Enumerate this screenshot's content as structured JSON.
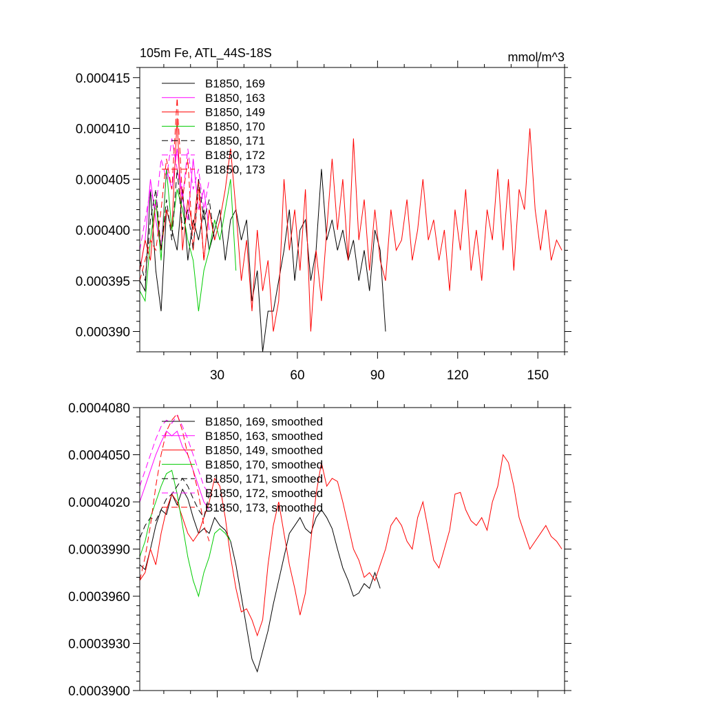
{
  "chart_data": [
    {
      "type": "line",
      "title": "105m Fe, ATL_44S-18S",
      "units": "mmol/m^3",
      "xlim": [
        1,
        160
      ],
      "ylim": [
        0.000388,
        0.000416
      ],
      "x_ticks": [
        30,
        60,
        90,
        120,
        150
      ],
      "x_tick_labels": [
        "30",
        "60",
        "90",
        "120",
        "150"
      ],
      "y_ticks": [
        0.00039,
        0.000395,
        0.0004,
        0.000405,
        0.00041,
        0.000415
      ],
      "y_tick_labels": [
        "0.000390",
        "0.000395",
        "0.000400",
        "0.000405",
        "0.000410",
        "0.000415"
      ],
      "legend": "top-left",
      "series": [
        {
          "name": "B1850, 169",
          "color": "#000000",
          "dash": "solid",
          "x": [
            1,
            3,
            5,
            7,
            9,
            11,
            13,
            15,
            17,
            19,
            21,
            23,
            25,
            27,
            29,
            31,
            33,
            35,
            37,
            39,
            41,
            43,
            45,
            47,
            49,
            51,
            53,
            55,
            57,
            59,
            61,
            63,
            65,
            67,
            69,
            71,
            73,
            75,
            77,
            79,
            81,
            83,
            85,
            87,
            89,
            91,
            93
          ],
          "y": [
            0.000395,
            0.000394,
            0.000404,
            0.000396,
            0.000392,
            0.000402,
            0.0004,
            0.000398,
            0.000404,
            0.000397,
            0.000401,
            0.000399,
            0.000402,
            0.000398,
            0.0004,
            0.000402,
            0.000397,
            0.000401,
            0.000402,
            0.000399,
            0.000401,
            0.000393,
            0.000396,
            0.000388,
            0.000392,
            0.000392,
            0.000395,
            0.000398,
            0.000402,
            0.000395,
            0.0004,
            0.000401,
            0.000395,
            0.000398,
            0.000406,
            0.000399,
            0.000401,
            0.000398,
            0.0004,
            0.000397,
            0.000399,
            0.000395,
            0.000398,
            0.000394,
            0.0004,
            0.000398,
            0.00039
          ]
        },
        {
          "name": "B1850, 163",
          "color": "#ff00ff",
          "dash": "solid",
          "x": [
            1,
            3,
            5,
            7,
            9,
            11,
            13,
            15,
            17,
            19,
            21,
            23,
            25,
            27
          ],
          "y": [
            0.000396,
            0.000399,
            0.000405,
            0.000401,
            0.000398,
            0.000406,
            0.000404,
            0.000408,
            0.000403,
            0.000401,
            0.000407,
            0.000402,
            0.000404,
            0.0004
          ]
        },
        {
          "name": "B1850, 149",
          "color": "#ff0000",
          "dash": "solid",
          "x": [
            1,
            3,
            5,
            7,
            9,
            11,
            13,
            15,
            17,
            19,
            21,
            23,
            25,
            27,
            29,
            31,
            33,
            35,
            37,
            39,
            41,
            43,
            45,
            47,
            49,
            51,
            53,
            55,
            57,
            59,
            61,
            63,
            65,
            67,
            69,
            71,
            73,
            75,
            77,
            79,
            81,
            83,
            85,
            87,
            89,
            91,
            93,
            95,
            97,
            99,
            101,
            103,
            105,
            107,
            109,
            111,
            113,
            115,
            117,
            119,
            121,
            123,
            125,
            127,
            129,
            131,
            133,
            135,
            137,
            139,
            141,
            143,
            145,
            147,
            149,
            151,
            153,
            155,
            157,
            159
          ],
          "y": [
            0.000396,
            0.000399,
            0.000397,
            0.000403,
            0.000398,
            0.000402,
            0.0004,
            0.000411,
            0.000398,
            0.000403,
            0.0004,
            0.000405,
            0.000397,
            0.000402,
            0.000399,
            0.000401,
            0.000404,
            0.000408,
            0.000402,
            0.000395,
            0.000399,
            0.000392,
            0.0004,
            0.000394,
            0.000397,
            0.00039,
            0.000393,
            0.000405,
            0.000398,
            0.000402,
            0.000396,
            0.000404,
            0.00039,
            0.000398,
            0.000393,
            0.0004,
            0.000407,
            0.0004,
            0.000405,
            0.000397,
            0.000409,
            0.000399,
            0.000403,
            0.000396,
            0.000402,
            0.000397,
            0.000395,
            0.000402,
            0.000398,
            0.000399,
            0.000403,
            0.000397,
            0.0004,
            0.000405,
            0.000399,
            0.000401,
            0.000397,
            0.0004,
            0.000394,
            0.000402,
            0.000398,
            0.000404,
            0.000396,
            0.0004,
            0.000395,
            0.000402,
            0.000399,
            0.000406,
            0.000398,
            0.000405,
            0.000396,
            0.000404,
            0.000402,
            0.00041,
            0.000402,
            0.000398,
            0.000402,
            0.000397,
            0.000399,
            0.000398
          ]
        },
        {
          "name": "B1850, 170",
          "color": "#00cc00",
          "dash": "solid",
          "x": [
            1,
            3,
            5,
            7,
            9,
            11,
            13,
            15,
            17,
            19,
            21,
            23,
            25,
            27,
            29,
            31,
            33,
            35,
            37
          ],
          "y": [
            0.000394,
            0.000393,
            0.000399,
            0.000403,
            0.000397,
            0.000406,
            0.0004,
            0.000404,
            0.000402,
            0.000399,
            0.000397,
            0.000392,
            0.000396,
            0.000398,
            0.000401,
            0.000399,
            0.000402,
            0.000405,
            0.000396
          ]
        },
        {
          "name": "B1850, 171",
          "color": "#000000",
          "dash": "dash",
          "x": [
            1,
            3,
            5,
            7,
            9,
            11,
            13,
            15,
            17,
            19,
            21,
            23,
            25,
            27,
            29
          ],
          "y": [
            0.000397,
            0.000395,
            0.000401,
            0.000404,
            0.000398,
            0.000403,
            0.000399,
            0.000406,
            0.0004,
            0.000402,
            0.000398,
            0.000405,
            0.000401,
            0.000403,
            0.000399
          ]
        },
        {
          "name": "B1850, 172",
          "color": "#ff00ff",
          "dash": "dash",
          "x": [
            1,
            3,
            5,
            7,
            9,
            11,
            13,
            15,
            17,
            19,
            21,
            23,
            25,
            27
          ],
          "y": [
            0.000398,
            0.000401,
            0.000404,
            0.000402,
            0.000407,
            0.000405,
            0.000409,
            0.000406,
            0.000403,
            0.000408,
            0.000404,
            0.000406,
            0.000402,
            0.000405
          ]
        },
        {
          "name": "B1850, 173",
          "color": "#ff0000",
          "dash": "dash",
          "x": [
            1,
            3,
            5,
            7,
            9,
            11,
            13,
            15,
            17,
            19,
            21,
            23,
            25,
            27,
            29
          ],
          "y": [
            0.000395,
            0.000397,
            0.000399,
            0.000398,
            0.000402,
            0.000407,
            0.000404,
            0.000413,
            0.000403,
            0.000407,
            0.000398,
            0.000404,
            0.000397,
            0.000402,
            0.000399
          ]
        }
      ]
    },
    {
      "type": "line",
      "title": "",
      "xlim": [
        1,
        160
      ],
      "ylim": [
        0.00039,
        0.000408
      ],
      "x_ticks": [
        30,
        60,
        90,
        120,
        150
      ],
      "x_tick_labels": [],
      "y_ticks": [
        0.00039,
        0.000393,
        0.000396,
        0.000399,
        0.000402,
        0.000405,
        0.000408
      ],
      "y_tick_labels": [
        "0.0003900",
        "0.0003930",
        "0.0003960",
        "0.0003990",
        "0.0004020",
        "0.0004050",
        "0.0004080"
      ],
      "legend": "top-left",
      "series": [
        {
          "name": "B1850, 169, smoothed",
          "color": "#000000",
          "dash": "solid",
          "x": [
            1,
            3,
            5,
            7,
            9,
            11,
            13,
            15,
            17,
            19,
            21,
            23,
            25,
            27,
            29,
            31,
            33,
            35,
            37,
            39,
            41,
            43,
            45,
            47,
            49,
            51,
            53,
            55,
            57,
            59,
            61,
            63,
            65,
            67,
            69,
            71,
            73,
            75,
            77,
            79,
            81,
            83,
            85,
            87,
            89,
            91
          ],
          "y": [
            0.000398,
            0.0003977,
            0.000399,
            0.0004005,
            0.0004015,
            0.0004012,
            0.0004025,
            0.0004018,
            0.0004028,
            0.0004022,
            0.000401,
            0.0004,
            0.0004003,
            0.0004,
            0.000401,
            0.0004005,
            0.0004002,
            0.0003995,
            0.000398,
            0.000396,
            0.000394,
            0.000392,
            0.0003912,
            0.0003925,
            0.0003938,
            0.0003955,
            0.000397,
            0.0003985,
            0.0004,
            0.0004005,
            0.000401,
            0.0004003,
            0.0004,
            0.000401,
            0.0004015,
            0.000401,
            0.0004003,
            0.000399,
            0.0003978,
            0.000397,
            0.000396,
            0.0003962,
            0.0003968,
            0.0003965,
            0.0003975,
            0.0003965
          ]
        },
        {
          "name": "B1850, 163, smoothed",
          "color": "#ff00ff",
          "dash": "solid",
          "x": [
            1,
            3,
            5,
            7,
            9,
            11,
            13,
            15,
            17,
            19,
            21,
            23,
            25,
            27
          ],
          "y": [
            0.000402,
            0.000403,
            0.000404,
            0.000405,
            0.0004058,
            0.0004065,
            0.0004062,
            0.0004065,
            0.0004055,
            0.000405,
            0.000404,
            0.000403,
            0.000402,
            0.0004015
          ]
        },
        {
          "name": "B1850, 149, smoothed",
          "color": "#ff0000",
          "dash": "solid",
          "x": [
            1,
            3,
            5,
            7,
            9,
            11,
            13,
            15,
            17,
            19,
            21,
            23,
            25,
            27,
            29,
            31,
            33,
            35,
            37,
            39,
            41,
            43,
            45,
            47,
            49,
            51,
            53,
            55,
            57,
            59,
            61,
            63,
            65,
            67,
            69,
            71,
            73,
            75,
            77,
            79,
            81,
            83,
            85,
            87,
            89,
            91,
            93,
            95,
            97,
            99,
            101,
            103,
            105,
            107,
            109,
            111,
            113,
            115,
            117,
            119,
            121,
            123,
            125,
            127,
            129,
            131,
            133,
            135,
            137,
            139,
            141,
            143,
            145,
            147,
            149,
            151,
            153,
            155,
            157,
            159
          ],
          "y": [
            0.000397,
            0.0003975,
            0.000399,
            0.000398,
            0.0004,
            0.0004015,
            0.0004025,
            0.000402,
            0.000401,
            0.0004,
            0.0003995,
            0.0004,
            0.000401,
            0.000402,
            0.0004035,
            0.000403,
            0.000401,
            0.0003985,
            0.0003965,
            0.000395,
            0.0003952,
            0.0003945,
            0.0003935,
            0.0003945,
            0.000398,
            0.0004005,
            0.000402,
            0.0004,
            0.000398,
            0.0003965,
            0.0003948,
            0.0003962,
            0.0003995,
            0.0004025,
            0.0004045,
            0.000403,
            0.0004035,
            0.0004033,
            0.000402,
            0.0004005,
            0.000399,
            0.0003983,
            0.0003972,
            0.0003975,
            0.000397,
            0.000398,
            0.000399,
            0.0004005,
            0.000401,
            0.0004005,
            0.0003995,
            0.000399,
            0.000401,
            0.000402,
            0.0004002,
            0.0003983,
            0.0003978,
            0.000399,
            0.0004002,
            0.0004025,
            0.0004026,
            0.0004015,
            0.0004008,
            0.0004005,
            0.000401,
            0.0004002,
            0.000402,
            0.000403,
            0.000405,
            0.0004045,
            0.000403,
            0.000401,
            0.0004,
            0.000399,
            0.0003995,
            0.0004,
            0.0004005,
            0.0003998,
            0.0003995,
            0.000399
          ]
        },
        {
          "name": "B1850, 170, smoothed",
          "color": "#00cc00",
          "dash": "solid",
          "x": [
            1,
            3,
            5,
            7,
            9,
            11,
            13,
            15,
            17,
            19,
            21,
            23,
            25,
            27,
            29,
            31,
            33,
            35
          ],
          "y": [
            0.0003985,
            0.0003995,
            0.000401,
            0.000402,
            0.000403,
            0.0004038,
            0.000404,
            0.0004025,
            0.0004005,
            0.0003985,
            0.000397,
            0.000396,
            0.0003975,
            0.0003985,
            0.0004,
            0.0004003,
            0.0004,
            0.0003995
          ]
        },
        {
          "name": "B1850, 171, smoothed",
          "color": "#000000",
          "dash": "dash",
          "x": [
            1,
            3,
            5,
            7,
            9,
            11,
            13,
            15,
            17,
            19,
            21,
            23,
            25,
            27
          ],
          "y": [
            0.0003997,
            0.0004005,
            0.000401,
            0.0004008,
            0.0004015,
            0.0004022,
            0.0004025,
            0.000403,
            0.0004035,
            0.000403,
            0.0004022,
            0.0004015,
            0.000401,
            0.0004025
          ]
        },
        {
          "name": "B1850, 172, smoothed",
          "color": "#ff00ff",
          "dash": "dash",
          "x": [
            1,
            3,
            5,
            7,
            9,
            11,
            13,
            15,
            17,
            19,
            21,
            23,
            25,
            27
          ],
          "y": [
            0.000403,
            0.000404,
            0.000405,
            0.000406,
            0.0004068,
            0.0004072,
            0.000407,
            0.0004075,
            0.0004068,
            0.000406,
            0.000405,
            0.000404,
            0.000403,
            0.0004025
          ]
        },
        {
          "name": "B1850, 173, smoothed",
          "color": "#ff0000",
          "dash": "dash",
          "x": [
            1,
            3,
            5,
            7,
            9,
            11,
            13,
            15,
            17,
            19,
            21,
            23,
            25,
            27
          ],
          "y": [
            0.000397,
            0.0003985,
            0.0004005,
            0.000403,
            0.000405,
            0.0004065,
            0.0004072,
            0.0004076,
            0.0004065,
            0.000405,
            0.000404,
            0.0004025,
            0.0004005,
            0.0003995
          ]
        }
      ]
    }
  ]
}
